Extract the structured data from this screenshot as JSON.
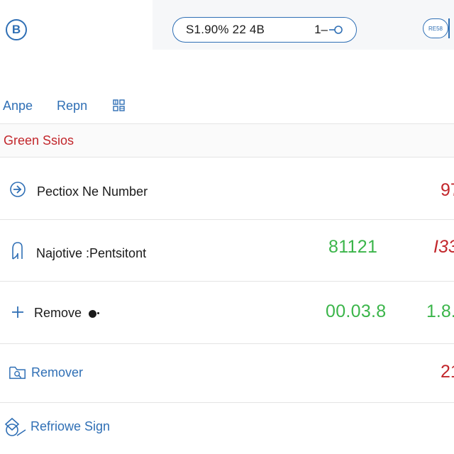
{
  "app": {
    "logo_letter": "B"
  },
  "search": {
    "text": "S1.90%  22 4B",
    "right_text": "1–"
  },
  "badge": {
    "label": "RE58"
  },
  "tabs": [
    {
      "label": "Anpe"
    },
    {
      "label": "Repn"
    }
  ],
  "section": {
    "title": "Green Ssios"
  },
  "rows": [
    {
      "label": "Pectiox Ne Number",
      "value_primary": "",
      "value_secondary": "97"
    },
    {
      "label": "Najotive :Pentsitont",
      "value_primary": "81121",
      "value_secondary": "I33"
    },
    {
      "label": "Remove",
      "value_primary": "00.03.8",
      "value_secondary": "1.8."
    },
    {
      "label": "Remover",
      "value_primary": "",
      "value_secondary": "21"
    },
    {
      "label": "Refriowe Sign",
      "value_primary": "",
      "value_secondary": ""
    }
  ],
  "colors": {
    "accent": "#2f6fb5",
    "positive": "#3bb54a",
    "negative": "#c2262b"
  },
  "icons": [
    "logo-icon",
    "search-key-icon",
    "grid-icon",
    "arrow-circle-icon",
    "bulb-icon",
    "plus-icon",
    "folder-search-icon",
    "shapes-icon"
  ]
}
